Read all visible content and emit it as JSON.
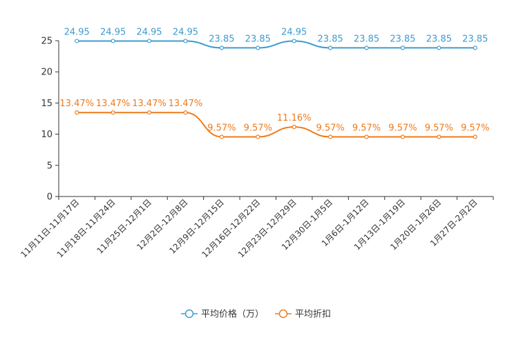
{
  "chart_data": {
    "type": "line",
    "title": "",
    "xlabel": "",
    "ylabel": "",
    "ylim": [
      0,
      25
    ],
    "yticks": [
      0,
      5,
      10,
      15,
      20,
      25
    ],
    "grid": false,
    "legend_position": "bottom-center",
    "categories": [
      "11月11日-11月17日",
      "11月18日-11月24日",
      "11月25日-12月1日",
      "12月2日-12月8日",
      "12月9日-12月15日",
      "12月16日-12月22日",
      "12月23日-12月29日",
      "12月30日-1月5日",
      "1月6日-1月12日",
      "1月13日-1月19日",
      "1月20日-1月26日",
      "1月27日-2月2日"
    ],
    "series": [
      {
        "name": "平均价格（万）",
        "color": "#3d9bd0",
        "values": [
          24.95,
          24.95,
          24.95,
          24.95,
          23.85,
          23.85,
          24.95,
          23.85,
          23.85,
          23.85,
          23.85,
          23.85
        ],
        "labels": [
          "24.95",
          "24.95",
          "24.95",
          "24.95",
          "23.85",
          "23.85",
          "24.95",
          "23.85",
          "23.85",
          "23.85",
          "23.85",
          "23.85"
        ]
      },
      {
        "name": "平均折扣",
        "color": "#f07a1a",
        "values": [
          13.47,
          13.47,
          13.47,
          13.47,
          9.57,
          9.57,
          11.16,
          9.57,
          9.57,
          9.57,
          9.57,
          9.57
        ],
        "labels": [
          "13.47%",
          "13.47%",
          "13.47%",
          "13.47%",
          "9.57%",
          "9.57%",
          "11.16%",
          "9.57%",
          "9.57%",
          "9.57%",
          "9.57%",
          "9.57%"
        ]
      }
    ]
  }
}
